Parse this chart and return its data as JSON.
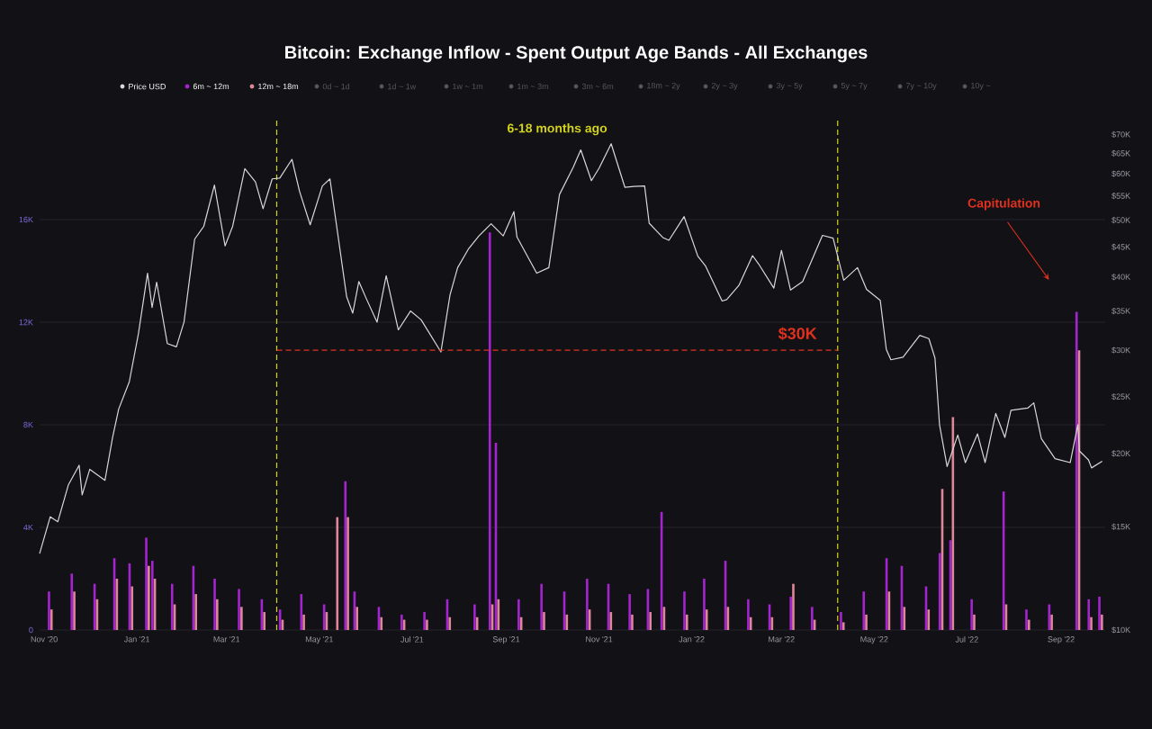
{
  "chart_data": {
    "type": "bar",
    "title": "Bitcoin: Exchange Inflow - Spent Output Age Bands - All Exchanges",
    "xlim": [
      "2020-10-29",
      "2022-09-30"
    ],
    "xticks": [
      {
        "value": "2020-11-01",
        "label": "Nov '20"
      },
      {
        "value": "2021-01-01",
        "label": "Jan '21"
      },
      {
        "value": "2021-03-01",
        "label": "Mar '21"
      },
      {
        "value": "2021-05-01",
        "label": "May '21"
      },
      {
        "value": "2021-07-01",
        "label": "Jul '21"
      },
      {
        "value": "2021-09-01",
        "label": "Sep '21"
      },
      {
        "value": "2021-11-01",
        "label": "Nov '21"
      },
      {
        "value": "2022-01-01",
        "label": "Jan '22"
      },
      {
        "value": "2022-03-01",
        "label": "Mar '22"
      },
      {
        "value": "2022-05-01",
        "label": "May '22"
      },
      {
        "value": "2022-07-01",
        "label": "Jul '22"
      },
      {
        "value": "2022-09-01",
        "label": "Sep '22"
      }
    ],
    "ylim": [
      0,
      20000
    ],
    "yticks": [
      0,
      {
        "value": 4000,
        "label": "4K"
      },
      {
        "value": 8000,
        "label": "8K"
      },
      {
        "value": 12000,
        "label": "12K"
      },
      {
        "value": 16000,
        "label": "16K"
      }
    ],
    "y2lim": [
      10000,
      75000
    ],
    "y2ticks": [
      {
        "value": 10000,
        "label": "$10K"
      },
      {
        "value": 15000,
        "label": "$15K"
      },
      {
        "value": 20000,
        "label": "$20K"
      },
      {
        "value": 25000,
        "label": "$25K"
      },
      {
        "value": 30000,
        "label": "$30K"
      },
      {
        "value": 35000,
        "label": "$35K"
      },
      {
        "value": 40000,
        "label": "$40K"
      },
      {
        "value": 45000,
        "label": "$45K"
      },
      {
        "value": 50000,
        "label": "$50K"
      },
      {
        "value": 55000,
        "label": "$55K"
      },
      {
        "value": 60000,
        "label": "$60K"
      },
      {
        "value": 65000,
        "label": "$65K"
      },
      {
        "value": 70000,
        "label": "$70K"
      }
    ],
    "log": "y2",
    "grid": "y",
    "legend": "top",
    "series": [
      {
        "name": "Price USD",
        "type": "line",
        "axis": "y2",
        "color": "#d8d8d8",
        "x": [
          "2020-10-29",
          "2020-11-05",
          "2020-11-10",
          "2020-11-17",
          "2020-11-24",
          "2020-11-26",
          "2020-12-01",
          "2020-12-11",
          "2020-12-16",
          "2020-12-20",
          "2020-12-27",
          "2021-01-02",
          "2021-01-08",
          "2021-01-11",
          "2021-01-14",
          "2021-01-21",
          "2021-01-27",
          "2021-02-01",
          "2021-02-08",
          "2021-02-14",
          "2021-02-21",
          "2021-02-28",
          "2021-03-05",
          "2021-03-13",
          "2021-03-20",
          "2021-03-25",
          "2021-03-31",
          "2021-04-05",
          "2021-04-13",
          "2021-04-18",
          "2021-04-25",
          "2021-05-03",
          "2021-05-08",
          "2021-05-12",
          "2021-05-19",
          "2021-05-23",
          "2021-05-27",
          "2021-06-01",
          "2021-06-08",
          "2021-06-14",
          "2021-06-22",
          "2021-06-30",
          "2021-07-07",
          "2021-07-20",
          "2021-07-26",
          "2021-07-31",
          "2021-08-07",
          "2021-08-14",
          "2021-08-22",
          "2021-08-30",
          "2021-09-06",
          "2021-09-08",
          "2021-09-21",
          "2021-09-29",
          "2021-10-06",
          "2021-10-15",
          "2021-10-20",
          "2021-10-27",
          "2021-11-01",
          "2021-11-09",
          "2021-11-18",
          "2021-11-24",
          "2021-12-01",
          "2021-12-04",
          "2021-12-13",
          "2021-12-17",
          "2021-12-27",
          "2022-01-05",
          "2022-01-10",
          "2022-01-21",
          "2022-01-24",
          "2022-02-01",
          "2022-02-10",
          "2022-02-14",
          "2022-02-24",
          "2022-03-01",
          "2022-03-07",
          "2022-03-15",
          "2022-03-28",
          "2022-04-04",
          "2022-04-11",
          "2022-04-20",
          "2022-04-26",
          "2022-05-05",
          "2022-05-09",
          "2022-05-12",
          "2022-05-20",
          "2022-05-31",
          "2022-06-06",
          "2022-06-10",
          "2022-06-13",
          "2022-06-18",
          "2022-06-25",
          "2022-06-30",
          "2022-07-08",
          "2022-07-13",
          "2022-07-20",
          "2022-07-26",
          "2022-07-30",
          "2022-08-10",
          "2022-08-14",
          "2022-08-19",
          "2022-08-28",
          "2022-09-07",
          "2022-09-12",
          "2022-09-13",
          "2022-09-19",
          "2022-09-21",
          "2022-09-28"
        ],
        "values": [
          13500,
          15600,
          15300,
          17700,
          19100,
          17000,
          18800,
          18000,
          21300,
          23800,
          26500,
          32000,
          40600,
          35500,
          39200,
          30800,
          30400,
          33500,
          46400,
          48800,
          57400,
          45200,
          48800,
          61200,
          58100,
          52300,
          58800,
          59000,
          63500,
          56000,
          49100,
          57200,
          58800,
          49700,
          37000,
          34700,
          39300,
          36700,
          33500,
          40200,
          32500,
          35000,
          33800,
          29800,
          37300,
          41500,
          44600,
          47000,
          49300,
          47000,
          51700,
          46800,
          40600,
          41500,
          55300,
          61500,
          65900,
          58400,
          61300,
          67500,
          56900,
          57100,
          57200,
          49400,
          46700,
          46200,
          50700,
          43400,
          41800,
          36400,
          36600,
          38700,
          43500,
          42100,
          38300,
          44400,
          38000,
          39300,
          47100,
          46600,
          39500,
          41500,
          38100,
          36500,
          30100,
          28900,
          29200,
          31800,
          31400,
          29100,
          22400,
          19000,
          21500,
          19300,
          21600,
          19300,
          23400,
          21300,
          23700,
          23900,
          24400,
          21200,
          19600,
          19300,
          22400,
          20200,
          19500,
          18900,
          19400
        ]
      },
      {
        "name": "6m ~ 12m",
        "color": "#a424d0",
        "x": [
          "2020-11-05",
          "2020-11-20",
          "2020-12-05",
          "2020-12-18",
          "2020-12-28",
          "2021-01-08",
          "2021-01-12",
          "2021-01-25",
          "2021-02-08",
          "2021-02-22",
          "2021-03-10",
          "2021-03-25",
          "2021-04-06",
          "2021-04-20",
          "2021-05-05",
          "2021-05-19",
          "2021-05-25",
          "2021-06-10",
          "2021-06-25",
          "2021-07-10",
          "2021-07-25",
          "2021-08-12",
          "2021-08-22",
          "2021-08-26",
          "2021-09-10",
          "2021-09-25",
          "2021-10-10",
          "2021-10-25",
          "2021-11-08",
          "2021-11-22",
          "2021-12-04",
          "2021-12-13",
          "2021-12-28",
          "2022-01-10",
          "2022-01-24",
          "2022-02-08",
          "2022-02-22",
          "2022-03-08",
          "2022-03-22",
          "2022-04-10",
          "2022-04-25",
          "2022-05-10",
          "2022-05-20",
          "2022-06-05",
          "2022-06-14",
          "2022-06-21",
          "2022-07-05",
          "2022-07-26",
          "2022-08-10",
          "2022-08-25",
          "2022-09-12",
          "2022-09-20",
          "2022-09-27"
        ],
        "values": [
          1500,
          2200,
          1800,
          2800,
          2600,
          3600,
          2700,
          1800,
          2500,
          2000,
          1600,
          1200,
          800,
          1400,
          1000,
          5800,
          1500,
          900,
          600,
          700,
          1200,
          1000,
          15500,
          7300,
          1200,
          1800,
          1500,
          2000,
          1800,
          1400,
          1600,
          4600,
          1500,
          2000,
          2700,
          1200,
          1000,
          1300,
          900,
          700,
          1500,
          2800,
          2500,
          1700,
          3000,
          3500,
          1200,
          5400,
          800,
          1000,
          12400,
          1200,
          1300
        ]
      },
      {
        "name": "12m ~ 18m",
        "color": "#e0869a",
        "x": [
          "2020-11-05",
          "2020-11-20",
          "2020-12-05",
          "2020-12-18",
          "2020-12-28",
          "2021-01-08",
          "2021-01-12",
          "2021-01-25",
          "2021-02-08",
          "2021-02-22",
          "2021-03-10",
          "2021-03-25",
          "2021-04-06",
          "2021-04-20",
          "2021-05-05",
          "2021-05-12",
          "2021-05-19",
          "2021-05-25",
          "2021-06-10",
          "2021-06-25",
          "2021-07-10",
          "2021-07-25",
          "2021-08-12",
          "2021-08-22",
          "2021-08-26",
          "2021-09-10",
          "2021-09-25",
          "2021-10-10",
          "2021-10-25",
          "2021-11-08",
          "2021-11-22",
          "2021-12-04",
          "2021-12-13",
          "2021-12-28",
          "2022-01-10",
          "2022-01-24",
          "2022-02-08",
          "2022-02-22",
          "2022-03-08",
          "2022-03-22",
          "2022-04-10",
          "2022-04-25",
          "2022-05-10",
          "2022-05-20",
          "2022-06-05",
          "2022-06-14",
          "2022-06-21",
          "2022-07-05",
          "2022-07-26",
          "2022-08-10",
          "2022-08-25",
          "2022-09-12",
          "2022-09-20",
          "2022-09-27"
        ],
        "values": [
          800,
          1500,
          1200,
          2000,
          1700,
          2500,
          2000,
          1000,
          1400,
          1200,
          900,
          700,
          400,
          600,
          700,
          4400,
          4400,
          900,
          500,
          400,
          400,
          500,
          500,
          1000,
          1200,
          500,
          700,
          600,
          800,
          700,
          600,
          700,
          900,
          600,
          800,
          900,
          500,
          500,
          1800,
          400,
          300,
          600,
          1500,
          900,
          800,
          5500,
          8300,
          600,
          1000,
          400,
          600,
          10900,
          500,
          600
        ]
      }
    ],
    "ref_lines": [
      {
        "axis": "x",
        "value": "2021-04-03",
        "color": "#d4d41c",
        "line_style": "dashed"
      },
      {
        "axis": "x",
        "value": "2022-04-07",
        "color": "#d4d41c",
        "line_style": "dashed"
      },
      {
        "axis": "y2",
        "value": 30000,
        "label": "$30K",
        "color": "#e0301e",
        "line_style": "dashed"
      }
    ],
    "annotations": [
      "6-18 months ago",
      "Capitulation",
      "0d ~ 1d",
      "1d ~ 1w",
      "1w ~ 1m",
      "1m ~ 3m",
      "3m ~ 6m",
      "18m ~ 2y",
      "2y ~ 3y",
      "3y ~ 5y",
      "5y ~ 7y",
      "7y ~ 10y",
      "10y ~"
    ]
  }
}
